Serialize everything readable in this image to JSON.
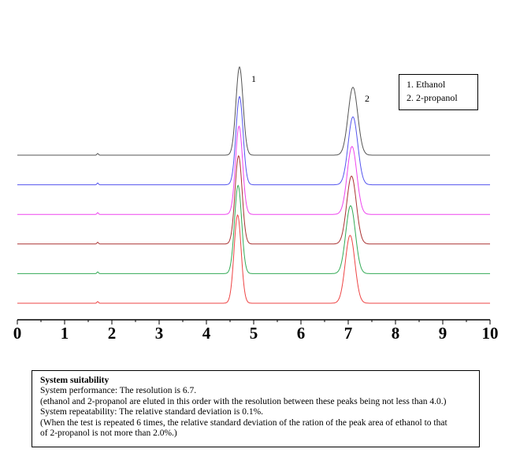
{
  "chart_data": {
    "type": "line",
    "title": "",
    "xlabel": "",
    "ylabel": "",
    "xlim": [
      0,
      10
    ],
    "x_ticks": [
      "0",
      "1",
      "2",
      "3",
      "4",
      "5",
      "6",
      "7",
      "8",
      "9",
      "10"
    ],
    "grid": false,
    "legend_placement": "top-right",
    "peak_labels": [
      {
        "text": "1",
        "x": 4.7
      },
      {
        "text": "2",
        "x": 7.1
      }
    ],
    "legend": [
      "1. Ethanol",
      "2. 2-propanol"
    ],
    "series": [
      {
        "color": "#555555",
        "peaks": [
          {
            "x": 4.7,
            "height": 1.0
          },
          {
            "x": 7.1,
            "height": 0.77
          }
        ]
      },
      {
        "color": "#5555ee",
        "peaks": [
          {
            "x": 4.7,
            "height": 1.0
          },
          {
            "x": 7.1,
            "height": 0.77
          }
        ]
      },
      {
        "color": "#ee44ee",
        "peaks": [
          {
            "x": 4.69,
            "height": 1.0
          },
          {
            "x": 7.08,
            "height": 0.77
          }
        ]
      },
      {
        "color": "#aa3333",
        "peaks": [
          {
            "x": 4.68,
            "height": 1.0
          },
          {
            "x": 7.07,
            "height": 0.77
          }
        ]
      },
      {
        "color": "#33aa55",
        "peaks": [
          {
            "x": 4.67,
            "height": 1.0
          },
          {
            "x": 7.05,
            "height": 0.77
          }
        ]
      },
      {
        "color": "#ee4444",
        "peaks": [
          {
            "x": 4.66,
            "height": 1.0
          },
          {
            "x": 7.04,
            "height": 0.77
          }
        ]
      }
    ]
  },
  "system_suitability": {
    "title": "System suitability",
    "lines": [
      "System performance: The resolution is 6.7.",
      "(ethanol and 2-propanol are eluted in this order with the resolution between these peaks being not less than 4.0.)",
      "System repeatability: The relative standard deviation is 0.1%.",
      "(When the test is repeated 6 times, the relative standard deviation of the ration of the peak area of ethanol to that",
      " of 2-propanol is not more than 2.0%.)"
    ]
  }
}
